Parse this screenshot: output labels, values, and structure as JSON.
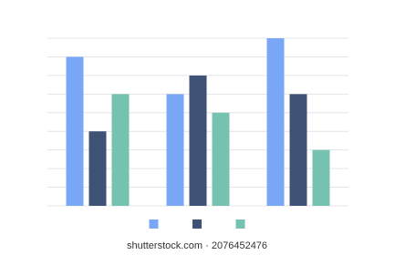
{
  "chart_data": {
    "type": "bar",
    "categories": [
      null,
      null,
      null
    ],
    "series": [
      {
        "color": "#7aa7f5",
        "values": [
          8,
          6,
          9
        ]
      },
      {
        "color": "#3e5275",
        "values": [
          4,
          7,
          6
        ]
      },
      {
        "color": "#76c2b0",
        "values": [
          6,
          5,
          3
        ]
      }
    ],
    "ylim": [
      0,
      9
    ],
    "yticks": [
      0,
      1,
      2,
      3,
      4,
      5,
      6,
      7,
      8,
      9
    ],
    "grid": true,
    "legend": "bottom"
  },
  "watermark": "shutterstock.com · 2076452476"
}
